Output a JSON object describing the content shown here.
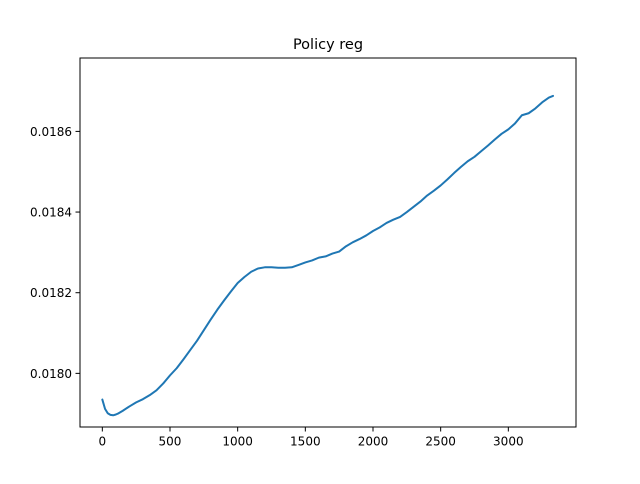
{
  "chart_data": {
    "type": "line",
    "title": "Policy reg",
    "xlabel": "",
    "ylabel": "",
    "xlim": [
      -165,
      3500
    ],
    "ylim": [
      0.017867,
      0.018782
    ],
    "x_ticks": [
      0,
      500,
      1000,
      1500,
      2000,
      2500,
      3000
    ],
    "x_tick_labels": [
      "0",
      "500",
      "1000",
      "1500",
      "2000",
      "2500",
      "3000"
    ],
    "y_ticks": [
      0.018,
      0.0182,
      0.0184,
      0.0186
    ],
    "y_tick_labels": [
      "0.0180",
      "0.0182",
      "0.0184",
      "0.0186"
    ],
    "grid": false,
    "legend": "none",
    "series": [
      {
        "color": "#1f77b4",
        "x": [
          0,
          20,
          40,
          60,
          80,
          100,
          120,
          150,
          200,
          250,
          300,
          350,
          400,
          450,
          500,
          550,
          600,
          650,
          700,
          750,
          800,
          850,
          900,
          950,
          1000,
          1050,
          1100,
          1150,
          1200,
          1250,
          1300,
          1350,
          1400,
          1450,
          1500,
          1550,
          1600,
          1650,
          1700,
          1750,
          1800,
          1850,
          1900,
          1950,
          2000,
          2050,
          2100,
          2150,
          2200,
          2250,
          2300,
          2350,
          2400,
          2450,
          2500,
          2550,
          2600,
          2650,
          2700,
          2750,
          2800,
          2850,
          2900,
          2950,
          3000,
          3050,
          3100,
          3150,
          3200,
          3250,
          3300,
          3330
        ],
        "y": [
          0.017935,
          0.017912,
          0.017901,
          0.017897,
          0.017896,
          0.017898,
          0.017901,
          0.017907,
          0.017918,
          0.017928,
          0.017936,
          0.017946,
          0.017958,
          0.017975,
          0.017995,
          0.018013,
          0.018035,
          0.018058,
          0.018081,
          0.018107,
          0.018133,
          0.018158,
          0.018181,
          0.018203,
          0.018224,
          0.018239,
          0.018252,
          0.01826,
          0.018263,
          0.018263,
          0.018262,
          0.018262,
          0.018263,
          0.018269,
          0.018275,
          0.01828,
          0.018287,
          0.01829,
          0.018297,
          0.018302,
          0.018315,
          0.018325,
          0.018333,
          0.018342,
          0.018353,
          0.018362,
          0.018373,
          0.018381,
          0.018388,
          0.0184,
          0.018413,
          0.018426,
          0.018441,
          0.018453,
          0.018466,
          0.018481,
          0.018497,
          0.018512,
          0.018526,
          0.018537,
          0.018551,
          0.018565,
          0.01858,
          0.018594,
          0.018605,
          0.01862,
          0.01864,
          0.018645,
          0.018657,
          0.018672,
          0.018684,
          0.018688
        ]
      }
    ]
  }
}
